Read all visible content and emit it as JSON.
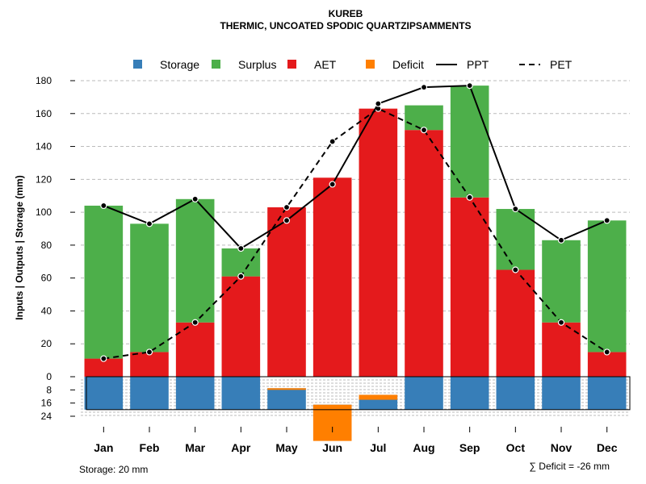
{
  "chart_data": {
    "type": "bar",
    "title": "KUREB",
    "subtitle": "THERMIC, UNCOATED SPODIC QUARTZIPSAMMENTS",
    "ylabel": "Inputs | Outputs | Storage    (mm)",
    "categories": [
      "Jan",
      "Feb",
      "Mar",
      "Apr",
      "May",
      "Jun",
      "Jul",
      "Aug",
      "Sep",
      "Oct",
      "Nov",
      "Dec"
    ],
    "ylim": [
      0,
      180
    ],
    "yticks": [
      0,
      20,
      40,
      60,
      80,
      100,
      120,
      140,
      160,
      180
    ],
    "storage_ticks": [
      8,
      16,
      24
    ],
    "storage_ylim": [
      0,
      24
    ],
    "legend": [
      "Storage",
      "Surplus",
      "AET",
      "Deficit",
      "PPT",
      "PET"
    ],
    "colors": {
      "storage": "#377eb8",
      "surplus": "#4daf4a",
      "aet": "#e41a1c",
      "deficit": "#ff7f00",
      "line": "#000000",
      "grid": "#bbbbbb"
    },
    "series": [
      {
        "name": "AET",
        "values": [
          11,
          15,
          33,
          61,
          103,
          121,
          163,
          150,
          109,
          65,
          33,
          15
        ]
      },
      {
        "name": "Surplus",
        "values": [
          93,
          78,
          75,
          17,
          0,
          0,
          0,
          15,
          68,
          37,
          50,
          80
        ]
      },
      {
        "name": "PPT",
        "values": [
          104,
          93,
          108,
          78,
          95,
          117,
          166,
          176,
          177,
          102,
          83,
          95
        ]
      },
      {
        "name": "PET",
        "values": [
          11,
          15,
          33,
          61,
          103,
          143,
          163,
          150,
          109,
          65,
          33,
          15
        ]
      },
      {
        "name": "Storage",
        "values": [
          20,
          20,
          20,
          20,
          13,
          3,
          9,
          20,
          20,
          20,
          20,
          20
        ]
      },
      {
        "name": "Deficit",
        "values": [
          0,
          0,
          0,
          0,
          1,
          22,
          3,
          0,
          0,
          0,
          0,
          0
        ]
      }
    ],
    "annotations": {
      "storage_note": "Storage: 20 mm",
      "deficit_note": "∑ Deficit = -26 mm"
    }
  }
}
